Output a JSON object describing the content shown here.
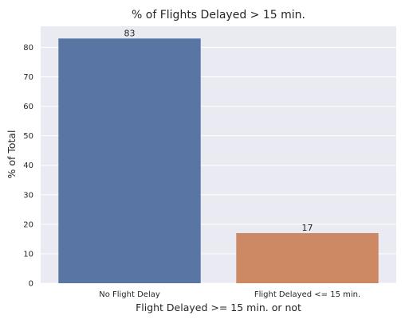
{
  "chart_data": {
    "type": "bar",
    "title": "% of Flights Delayed > 15 min.",
    "xlabel": "Flight Delayed >= 15 min. or not",
    "ylabel": "% of Total",
    "categories": [
      "No Flight Delay",
      "Flight Delayed <= 15 min."
    ],
    "values": [
      83,
      17
    ],
    "data_labels": [
      "83",
      "17"
    ],
    "yticks": [
      0,
      10,
      20,
      30,
      40,
      50,
      60,
      70,
      80
    ],
    "ylim": [
      0,
      87.15
    ],
    "grid": true,
    "legend": "none",
    "colors": {
      "background": "#EAEAF2",
      "grid": "#FFFFFF",
      "bars": [
        "#5975A4",
        "#CC8963"
      ]
    }
  }
}
